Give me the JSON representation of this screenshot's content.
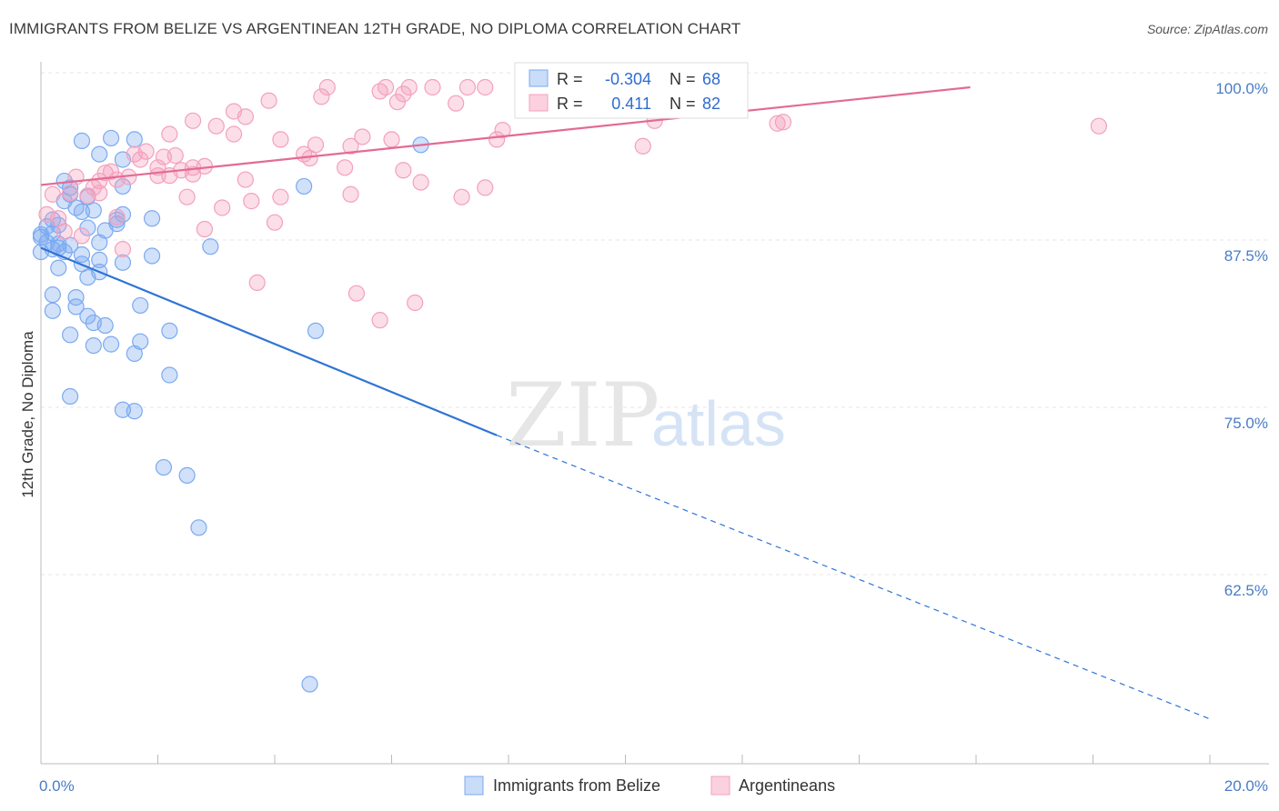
{
  "title": "IMMIGRANTS FROM BELIZE VS ARGENTINEAN 12TH GRADE, NO DIPLOMA CORRELATION CHART",
  "source": "Source: ZipAtlas.com",
  "watermark": {
    "zip": "ZIP",
    "atlas": "atlas"
  },
  "legend": {
    "r_label": "R =",
    "n_label": "N =",
    "rows": [
      {
        "r": "-0.304",
        "n": "68",
        "color": "#7aaaf0"
      },
      {
        "r": "0.411",
        "n": "82",
        "color": "#f4a0bc"
      }
    ]
  },
  "chart_data": {
    "type": "scatter",
    "title": "IMMIGRANTS FROM BELIZE VS ARGENTINEAN 12TH GRADE, NO DIPLOMA CORRELATION CHART",
    "xlabel": "",
    "ylabel": "12th Grade, No Diploma",
    "xlim": [
      0,
      20
    ],
    "ylim": [
      51.5,
      101
    ],
    "x_tick_labels": [
      "0.0%",
      "20.0%"
    ],
    "y_ticks": [
      100,
      87.5,
      75,
      62.5
    ],
    "y_tick_labels": [
      "100.0%",
      "87.5%",
      "75.0%",
      "62.5%"
    ],
    "grid": true,
    "legend_position": "bottom",
    "series": [
      {
        "name": "Immigrants from Belize",
        "color": "#7aaaf0",
        "trend": {
          "x0": 0.0,
          "y0": 88.0,
          "x1": 7.8,
          "y1": 74.0,
          "x_end": 20.0,
          "y_end": 52.8
        },
        "points": [
          [
            0.7,
            96.0
          ],
          [
            1.6,
            96.1
          ],
          [
            1.0,
            95.0
          ],
          [
            0.4,
            93.0
          ],
          [
            0.5,
            92.5
          ],
          [
            0.5,
            92.0
          ],
          [
            0.8,
            91.8
          ],
          [
            1.4,
            92.6
          ],
          [
            0.4,
            91.5
          ],
          [
            0.7,
            90.7
          ],
          [
            0.9,
            90.8
          ],
          [
            1.4,
            90.5
          ],
          [
            1.3,
            90.1
          ],
          [
            1.9,
            90.2
          ],
          [
            0.2,
            90.1
          ],
          [
            0.3,
            89.7
          ],
          [
            0.1,
            89.6
          ],
          [
            0.8,
            89.5
          ],
          [
            1.1,
            89.3
          ],
          [
            0.2,
            89.1
          ],
          [
            0.0,
            88.8
          ],
          [
            0.1,
            88.4
          ],
          [
            0.3,
            88.3
          ],
          [
            0.5,
            88.2
          ],
          [
            0.2,
            87.9
          ],
          [
            0.0,
            87.7
          ],
          [
            0.4,
            87.7
          ],
          [
            0.7,
            87.5
          ],
          [
            1.0,
            87.1
          ],
          [
            1.4,
            86.9
          ],
          [
            1.9,
            87.4
          ],
          [
            0.7,
            86.8
          ],
          [
            0.3,
            86.5
          ],
          [
            1.0,
            86.2
          ],
          [
            0.8,
            85.8
          ],
          [
            2.9,
            88.1
          ],
          [
            1.2,
            96.2
          ],
          [
            1.4,
            94.6
          ],
          [
            0.2,
            84.5
          ],
          [
            0.6,
            84.3
          ],
          [
            0.6,
            83.6
          ],
          [
            1.7,
            83.7
          ],
          [
            0.2,
            83.3
          ],
          [
            0.8,
            82.9
          ],
          [
            1.1,
            82.2
          ],
          [
            0.9,
            82.4
          ],
          [
            2.2,
            81.8
          ],
          [
            0.5,
            81.5
          ],
          [
            1.7,
            81.0
          ],
          [
            0.9,
            80.7
          ],
          [
            1.2,
            80.8
          ],
          [
            1.6,
            80.1
          ],
          [
            2.2,
            78.5
          ],
          [
            0.5,
            76.9
          ],
          [
            1.4,
            75.9
          ],
          [
            1.6,
            75.8
          ],
          [
            2.1,
            71.6
          ],
          [
            2.5,
            71.0
          ],
          [
            2.7,
            67.1
          ],
          [
            4.6,
            55.4
          ],
          [
            4.7,
            81.8
          ],
          [
            6.5,
            95.7
          ],
          [
            4.5,
            92.6
          ],
          [
            0.0,
            89.0
          ],
          [
            0.3,
            88.0
          ],
          [
            1.0,
            88.4
          ],
          [
            0.6,
            91.0
          ],
          [
            1.3,
            89.8
          ]
        ]
      },
      {
        "name": "Argentineans",
        "color": "#f4a0bc",
        "trend": {
          "x0": 0.0,
          "y0": 92.7,
          "x1": 15.9,
          "y1": 100.0
        },
        "points": [
          [
            0.1,
            90.5
          ],
          [
            0.3,
            90.2
          ],
          [
            0.5,
            92.1
          ],
          [
            0.6,
            93.3
          ],
          [
            0.9,
            92.5
          ],
          [
            1.0,
            93.0
          ],
          [
            0.8,
            91.9
          ],
          [
            1.1,
            93.6
          ],
          [
            1.3,
            93.1
          ],
          [
            1.5,
            93.3
          ],
          [
            1.6,
            95.0
          ],
          [
            1.8,
            95.2
          ],
          [
            2.0,
            93.4
          ],
          [
            2.0,
            94.0
          ],
          [
            2.1,
            94.8
          ],
          [
            2.3,
            94.9
          ],
          [
            2.4,
            93.8
          ],
          [
            2.6,
            93.5
          ],
          [
            2.8,
            94.1
          ],
          [
            2.2,
            96.5
          ],
          [
            2.6,
            97.5
          ],
          [
            3.0,
            97.1
          ],
          [
            3.3,
            96.5
          ],
          [
            3.3,
            98.2
          ],
          [
            3.5,
            97.8
          ],
          [
            3.9,
            99.0
          ],
          [
            4.1,
            96.1
          ],
          [
            4.5,
            95.0
          ],
          [
            4.6,
            94.7
          ],
          [
            4.7,
            95.7
          ],
          [
            4.8,
            99.3
          ],
          [
            4.9,
            100.0
          ],
          [
            5.3,
            95.6
          ],
          [
            5.5,
            96.3
          ],
          [
            5.8,
            99.7
          ],
          [
            5.9,
            100.0
          ],
          [
            6.0,
            96.1
          ],
          [
            6.1,
            98.9
          ],
          [
            6.2,
            99.5
          ],
          [
            6.3,
            100.0
          ],
          [
            6.7,
            100.0
          ],
          [
            7.1,
            98.8
          ],
          [
            7.3,
            100.0
          ],
          [
            7.6,
            100.0
          ],
          [
            7.8,
            96.1
          ],
          [
            7.9,
            96.8
          ],
          [
            8.6,
            100.0
          ],
          [
            9.0,
            100.0
          ],
          [
            9.2,
            100.0
          ],
          [
            10.3,
            100.0
          ],
          [
            10.5,
            97.5
          ],
          [
            10.3,
            95.6
          ],
          [
            12.6,
            97.3
          ],
          [
            12.7,
            97.4
          ],
          [
            18.1,
            97.1
          ],
          [
            1.2,
            93.7
          ],
          [
            3.5,
            93.1
          ],
          [
            3.6,
            91.5
          ],
          [
            4.1,
            91.8
          ],
          [
            4.0,
            89.9
          ],
          [
            5.2,
            94.0
          ],
          [
            5.3,
            92.0
          ],
          [
            6.2,
            93.8
          ],
          [
            6.5,
            92.9
          ],
          [
            7.2,
            91.8
          ],
          [
            7.6,
            92.5
          ],
          [
            2.5,
            91.8
          ],
          [
            3.1,
            91.0
          ],
          [
            1.3,
            90.3
          ],
          [
            0.4,
            89.2
          ],
          [
            1.4,
            87.9
          ],
          [
            3.7,
            85.4
          ],
          [
            5.4,
            84.6
          ],
          [
            5.8,
            82.6
          ],
          [
            6.4,
            83.9
          ],
          [
            2.8,
            89.4
          ],
          [
            0.2,
            92.0
          ],
          [
            0.7,
            88.9
          ],
          [
            1.7,
            94.6
          ],
          [
            2.2,
            93.4
          ],
          [
            1.0,
            92.1
          ],
          [
            2.6,
            94.0
          ]
        ]
      }
    ],
    "legend_entries": [
      "Immigrants from Belize",
      "Argentineans"
    ]
  }
}
